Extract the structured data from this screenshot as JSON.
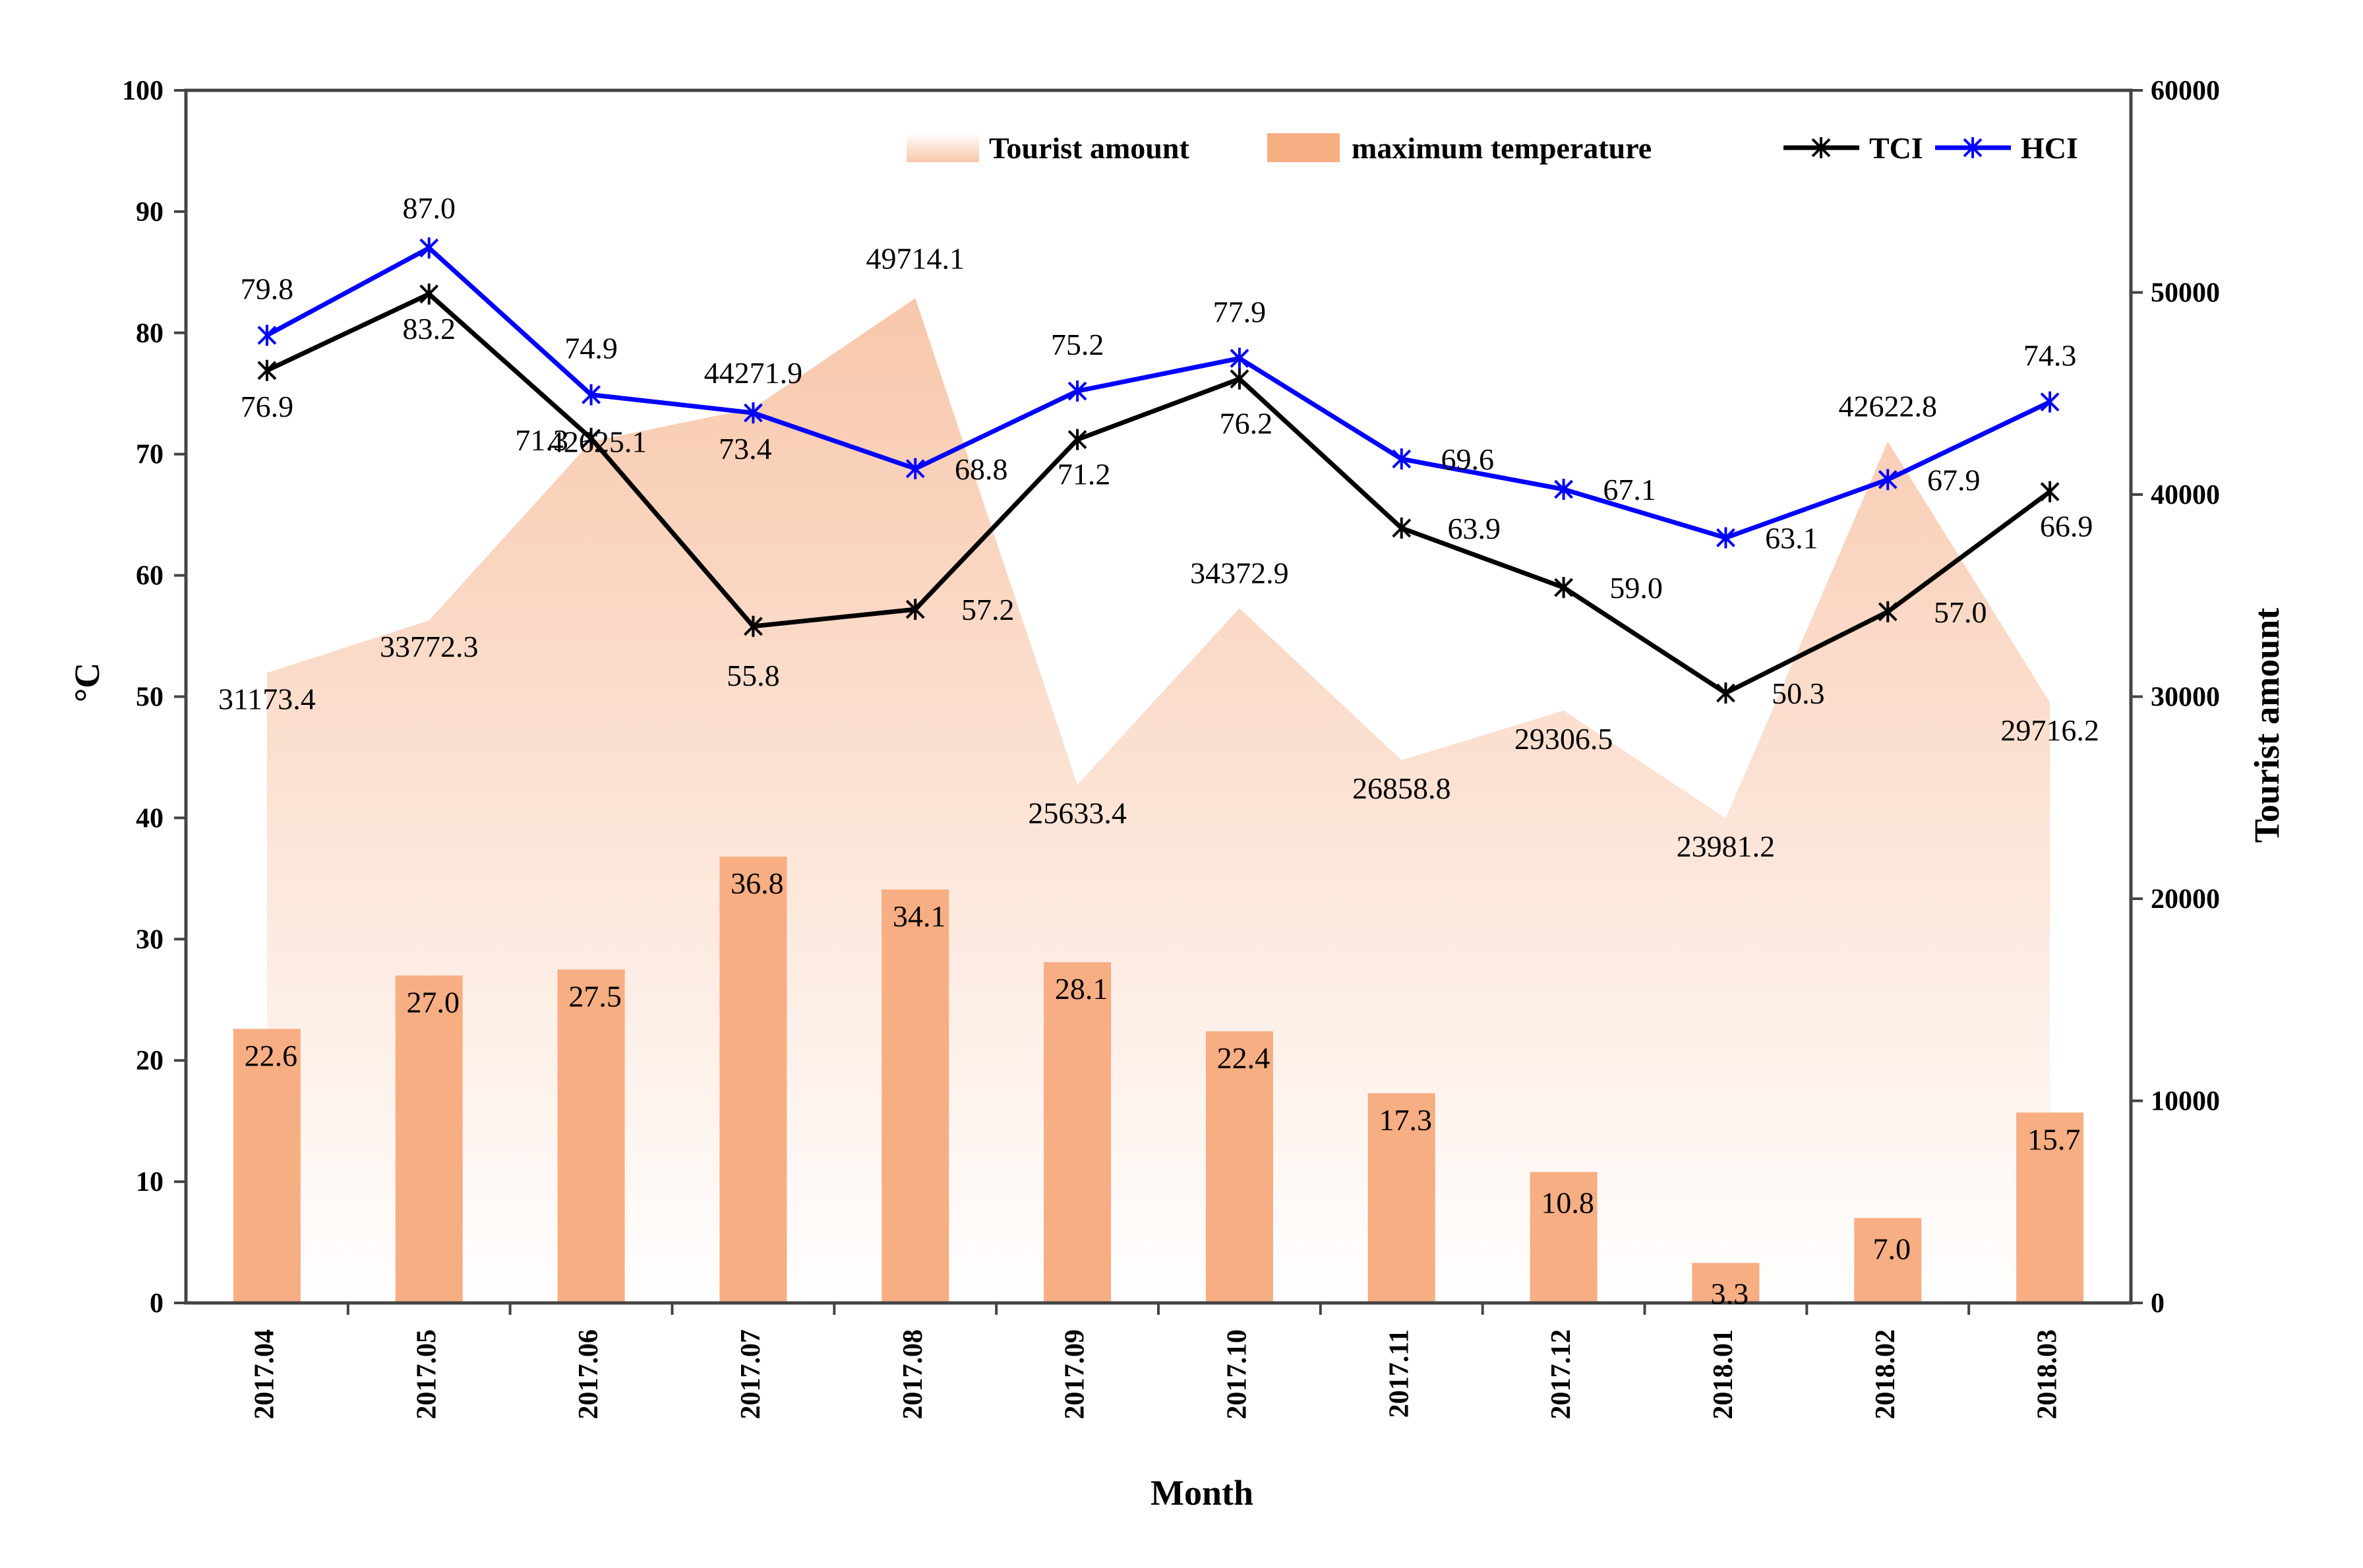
{
  "chart_data": {
    "type": "combo",
    "categories": [
      "2017.04",
      "2017.05",
      "2017.06",
      "2017.07",
      "2017.08",
      "2017.09",
      "2017.10",
      "2017.11",
      "2017.12",
      "2018.01",
      "2018.02",
      "2018.03"
    ],
    "xlabel": "Month",
    "ylabel_left": "°C",
    "ylabel_right": "Tourist amount",
    "ylim_left": [
      0,
      100
    ],
    "ylim_right": [
      0,
      60000
    ],
    "yticks_left": [
      "0",
      "10",
      "20",
      "30",
      "40",
      "50",
      "60",
      "70",
      "80",
      "90",
      "100"
    ],
    "yticks_right": [
      "0",
      "10000",
      "20000",
      "30000",
      "40000",
      "50000",
      "60000"
    ],
    "series": [
      {
        "name": "Tourist amount",
        "kind": "area",
        "axis": "right",
        "values": [
          31173.4,
          33772.3,
          42625.1,
          44271.9,
          49714.1,
          25633.4,
          34372.9,
          26858.8,
          29306.5,
          23981.2,
          42622.8,
          29716.2
        ],
        "labels": [
          "31173.4",
          "33772.3",
          "42625.1",
          "44271.9",
          "49714.1",
          "25633.4",
          "34372.9",
          "26858.8",
          "29306.5",
          "23981.2",
          "42622.8",
          "29716.2"
        ]
      },
      {
        "name": "maximum temperature",
        "kind": "bar",
        "axis": "left",
        "values": [
          22.6,
          27.0,
          27.5,
          36.8,
          34.1,
          28.1,
          22.4,
          17.3,
          10.8,
          3.3,
          7.0,
          15.7
        ],
        "labels": [
          "22.6",
          "27.0",
          "27.5",
          "36.8",
          "34.1",
          "28.1",
          "22.4",
          "17.3",
          "10.8",
          "3.3",
          "7.0",
          "15.7"
        ]
      },
      {
        "name": "TCI",
        "kind": "line",
        "axis": "left",
        "values": [
          76.9,
          83.2,
          71.3,
          55.8,
          57.2,
          71.2,
          76.2,
          63.9,
          59.0,
          50.3,
          57.0,
          66.9
        ],
        "labels": [
          "76.9",
          "83.2",
          "71.3",
          "55.8",
          "57.2",
          "71.2",
          "76.2",
          "63.9",
          "59.0",
          "50.3",
          "57.0",
          "66.9"
        ]
      },
      {
        "name": "HCI",
        "kind": "line",
        "axis": "left",
        "values": [
          79.8,
          87.0,
          74.9,
          73.4,
          68.8,
          75.2,
          77.9,
          69.6,
          67.1,
          63.1,
          67.9,
          74.3
        ],
        "labels": [
          "79.8",
          "87.0",
          "74.9",
          "73.4",
          "68.8",
          "75.2",
          "77.9",
          "69.6",
          "67.1",
          "63.1",
          "67.9",
          "74.3"
        ]
      }
    ],
    "legend": [
      "Tourist amount",
      "maximum temperature",
      "TCI",
      "HCI"
    ],
    "colors": {
      "area_top": "#f8c7ab",
      "area_bottom": "#ffffff",
      "bar": "#f7ae83",
      "tci": "#000000",
      "hci": "#0000ff"
    }
  }
}
